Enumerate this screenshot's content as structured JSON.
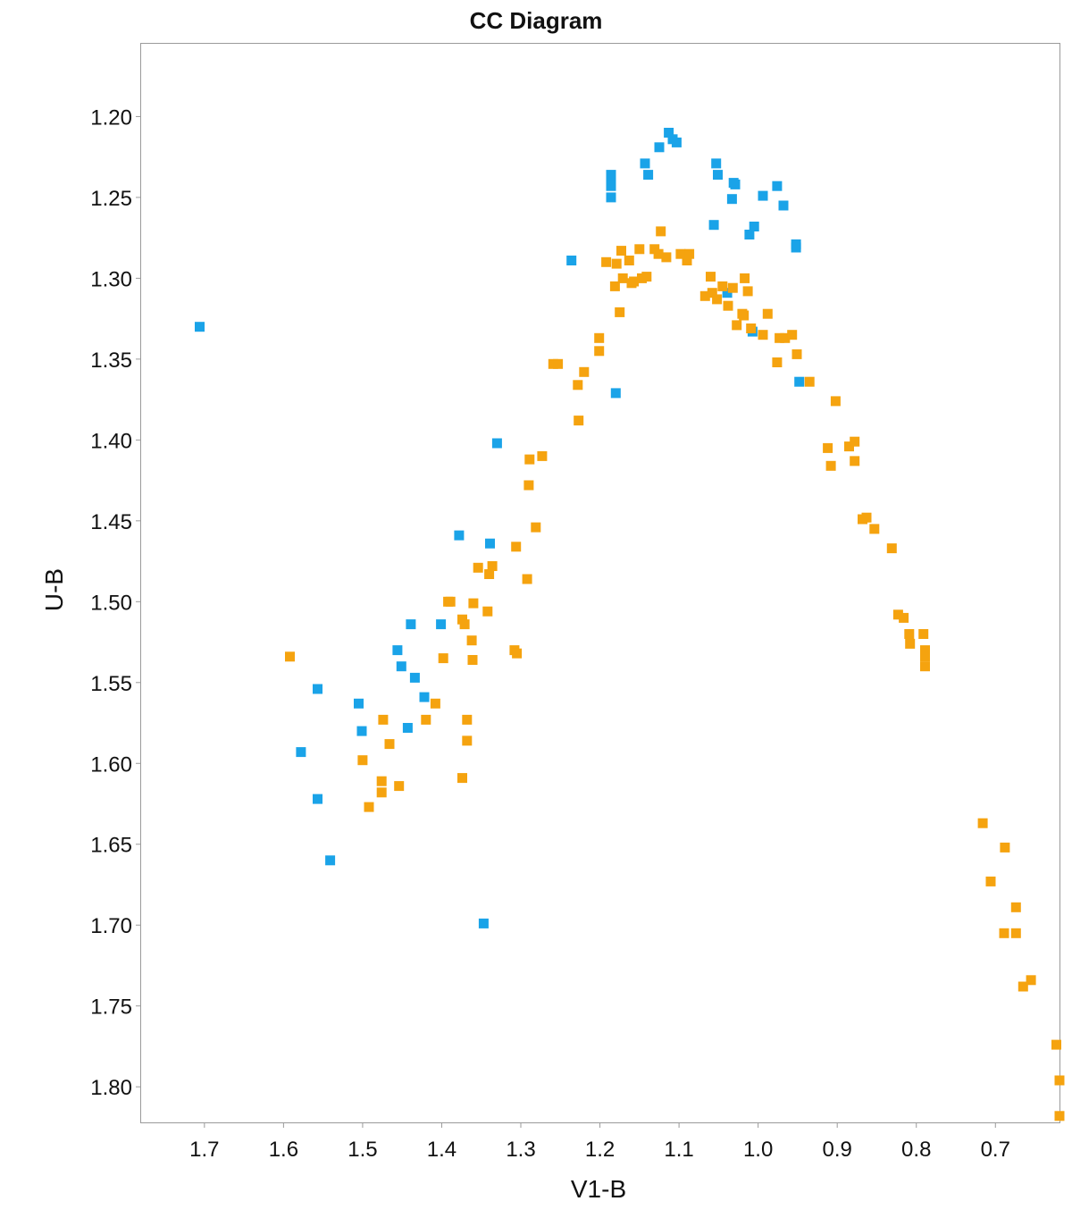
{
  "chart_data": {
    "type": "scatter",
    "title": "CC Diagram",
    "xlabel": "V1-B",
    "ylabel": "U-B",
    "xlim": [
      1.78,
      0.619
    ],
    "ylim": [
      1.155,
      1.822
    ],
    "x_reversed": true,
    "y_inverted": true,
    "grid": false,
    "legend": "none",
    "x_ticks": [
      1.7,
      1.6,
      1.5,
      1.4,
      1.3,
      1.2,
      1.1,
      1.0,
      0.9,
      0.8,
      0.7
    ],
    "x_tick_labels": [
      "1.7",
      "1.6",
      "1.5",
      "1.4",
      "1.3",
      "1.2",
      "1.1",
      "1.0",
      "0.9",
      "0.8",
      "0.7"
    ],
    "y_ticks": [
      1.2,
      1.25,
      1.3,
      1.35,
      1.4,
      1.45,
      1.5,
      1.55,
      1.6,
      1.65,
      1.7,
      1.75,
      1.8
    ],
    "y_tick_labels": [
      "1.20",
      "1.25",
      "1.30",
      "1.35",
      "1.40",
      "1.45",
      "1.50",
      "1.55",
      "1.60",
      "1.65",
      "1.70",
      "1.75",
      "1.80"
    ],
    "series": [
      {
        "color": "#1aa3e8",
        "points": [
          [
            1.706,
            1.33
          ],
          [
            1.557,
            1.554
          ],
          [
            1.578,
            1.593
          ],
          [
            1.557,
            1.622
          ],
          [
            1.541,
            1.66
          ],
          [
            1.505,
            1.563
          ],
          [
            1.501,
            1.58
          ],
          [
            1.456,
            1.53
          ],
          [
            1.451,
            1.54
          ],
          [
            1.443,
            1.578
          ],
          [
            1.439,
            1.514
          ],
          [
            1.434,
            1.547
          ],
          [
            1.422,
            1.559
          ],
          [
            1.401,
            1.514
          ],
          [
            1.378,
            1.459
          ],
          [
            1.347,
            1.699
          ],
          [
            1.339,
            1.464
          ],
          [
            1.33,
            1.402
          ],
          [
            1.236,
            1.289
          ],
          [
            1.186,
            1.236
          ],
          [
            1.186,
            1.24
          ],
          [
            1.186,
            1.243
          ],
          [
            1.186,
            1.25
          ],
          [
            1.18,
            1.371
          ],
          [
            1.143,
            1.229
          ],
          [
            1.139,
            1.236
          ],
          [
            1.125,
            1.219
          ],
          [
            1.113,
            1.21
          ],
          [
            1.108,
            1.214
          ],
          [
            1.103,
            1.216
          ],
          [
            1.053,
            1.229
          ],
          [
            1.051,
            1.236
          ],
          [
            1.056,
            1.267
          ],
          [
            1.031,
            1.241
          ],
          [
            1.029,
            1.242
          ],
          [
            1.033,
            1.251
          ],
          [
            1.039,
            1.309
          ],
          [
            1.011,
            1.273
          ],
          [
            1.005,
            1.268
          ],
          [
            1.007,
            1.333
          ],
          [
            0.994,
            1.249
          ],
          [
            0.976,
            1.243
          ],
          [
            0.968,
            1.255
          ],
          [
            0.952,
            1.279
          ],
          [
            0.952,
            1.281
          ],
          [
            0.948,
            1.364
          ]
        ]
      },
      {
        "color": "#f5a30f",
        "points": [
          [
            1.592,
            1.534
          ],
          [
            1.5,
            1.598
          ],
          [
            1.492,
            1.627
          ],
          [
            1.474,
            1.573
          ],
          [
            1.476,
            1.611
          ],
          [
            1.476,
            1.618
          ],
          [
            1.466,
            1.588
          ],
          [
            1.454,
            1.614
          ],
          [
            1.42,
            1.573
          ],
          [
            1.408,
            1.563
          ],
          [
            1.398,
            1.535
          ],
          [
            1.392,
            1.5
          ],
          [
            1.389,
            1.5
          ],
          [
            1.374,
            1.511
          ],
          [
            1.371,
            1.514
          ],
          [
            1.374,
            1.609
          ],
          [
            1.368,
            1.573
          ],
          [
            1.368,
            1.586
          ],
          [
            1.362,
            1.524
          ],
          [
            1.36,
            1.501
          ],
          [
            1.361,
            1.536
          ],
          [
            1.354,
            1.479
          ],
          [
            1.34,
            1.483
          ],
          [
            1.336,
            1.478
          ],
          [
            1.342,
            1.506
          ],
          [
            1.308,
            1.53
          ],
          [
            1.305,
            1.532
          ],
          [
            1.306,
            1.466
          ],
          [
            1.292,
            1.486
          ],
          [
            1.289,
            1.412
          ],
          [
            1.29,
            1.428
          ],
          [
            1.281,
            1.454
          ],
          [
            1.273,
            1.41
          ],
          [
            1.259,
            1.353
          ],
          [
            1.253,
            1.353
          ],
          [
            1.228,
            1.366
          ],
          [
            1.227,
            1.388
          ],
          [
            1.22,
            1.358
          ],
          [
            1.201,
            1.337
          ],
          [
            1.201,
            1.345
          ],
          [
            1.192,
            1.29
          ],
          [
            1.181,
            1.305
          ],
          [
            1.179,
            1.291
          ],
          [
            1.175,
            1.321
          ],
          [
            1.173,
            1.283
          ],
          [
            1.171,
            1.3
          ],
          [
            1.163,
            1.289
          ],
          [
            1.16,
            1.303
          ],
          [
            1.157,
            1.302
          ],
          [
            1.15,
            1.282
          ],
          [
            1.147,
            1.3
          ],
          [
            1.141,
            1.299
          ],
          [
            1.131,
            1.282
          ],
          [
            1.126,
            1.285
          ],
          [
            1.123,
            1.271
          ],
          [
            1.116,
            1.287
          ],
          [
            1.098,
            1.285
          ],
          [
            1.09,
            1.289
          ],
          [
            1.087,
            1.285
          ],
          [
            1.067,
            1.311
          ],
          [
            1.06,
            1.299
          ],
          [
            1.058,
            1.309
          ],
          [
            1.052,
            1.313
          ],
          [
            1.045,
            1.305
          ],
          [
            1.038,
            1.317
          ],
          [
            1.032,
            1.306
          ],
          [
            1.027,
            1.329
          ],
          [
            1.02,
            1.322
          ],
          [
            1.018,
            1.323
          ],
          [
            1.017,
            1.3
          ],
          [
            1.013,
            1.308
          ],
          [
            1.009,
            1.331
          ],
          [
            0.994,
            1.335
          ],
          [
            0.988,
            1.322
          ],
          [
            0.976,
            1.352
          ],
          [
            0.973,
            1.337
          ],
          [
            0.966,
            1.337
          ],
          [
            0.957,
            1.335
          ],
          [
            0.951,
            1.347
          ],
          [
            0.935,
            1.364
          ],
          [
            0.902,
            1.376
          ],
          [
            0.912,
            1.405
          ],
          [
            0.908,
            1.416
          ],
          [
            0.885,
            1.404
          ],
          [
            0.878,
            1.401
          ],
          [
            0.878,
            1.413
          ],
          [
            0.868,
            1.449
          ],
          [
            0.863,
            1.448
          ],
          [
            0.853,
            1.455
          ],
          [
            0.831,
            1.467
          ],
          [
            0.823,
            1.508
          ],
          [
            0.816,
            1.51
          ],
          [
            0.809,
            1.52
          ],
          [
            0.808,
            1.526
          ],
          [
            0.791,
            1.52
          ],
          [
            0.789,
            1.53
          ],
          [
            0.789,
            1.534
          ],
          [
            0.789,
            1.54
          ],
          [
            0.716,
            1.637
          ],
          [
            0.706,
            1.673
          ],
          [
            0.688,
            1.652
          ],
          [
            0.689,
            1.705
          ],
          [
            0.674,
            1.689
          ],
          [
            0.674,
            1.705
          ],
          [
            0.665,
            1.738
          ],
          [
            0.655,
            1.734
          ],
          [
            0.623,
            1.774
          ],
          [
            0.619,
            1.796
          ],
          [
            0.619,
            1.818
          ]
        ]
      }
    ]
  }
}
